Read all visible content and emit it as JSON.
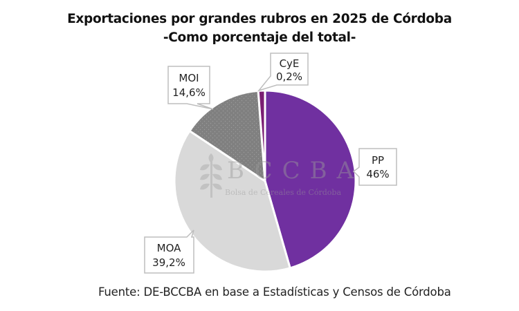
{
  "chart_data": {
    "type": "pie",
    "title": "Exportaciones por grandes rubros  en 2025 de Córdoba",
    "subtitle": "-Como porcentaje del total-",
    "start_angle": "12 o'clock",
    "direction": "clockwise",
    "slices": [
      {
        "label": "PP",
        "value": 46.0,
        "display": "46%",
        "color": "#7030A0",
        "pattern": "solid"
      },
      {
        "label": "MOA",
        "value": 39.2,
        "display": "39,2%",
        "color": "#D9D9D9",
        "pattern": "solid"
      },
      {
        "label": "MOI",
        "value": 14.6,
        "display": "14,6%",
        "color": "#808080",
        "pattern": "dotted"
      },
      {
        "label": "CyE",
        "value": 0.2,
        "display": "0,2%",
        "color": "#7A1E72",
        "pattern": "solid"
      }
    ],
    "unit": "%",
    "legend": "none (callout data labels)"
  },
  "watermark": {
    "logo": "BCCBA",
    "tagline": "Bolsa de Cereales de Córdoba",
    "icon": "wheat-icon"
  },
  "source": "Fuente: DE-BCCBA en base a Estadísticas y Censos de Córdoba"
}
